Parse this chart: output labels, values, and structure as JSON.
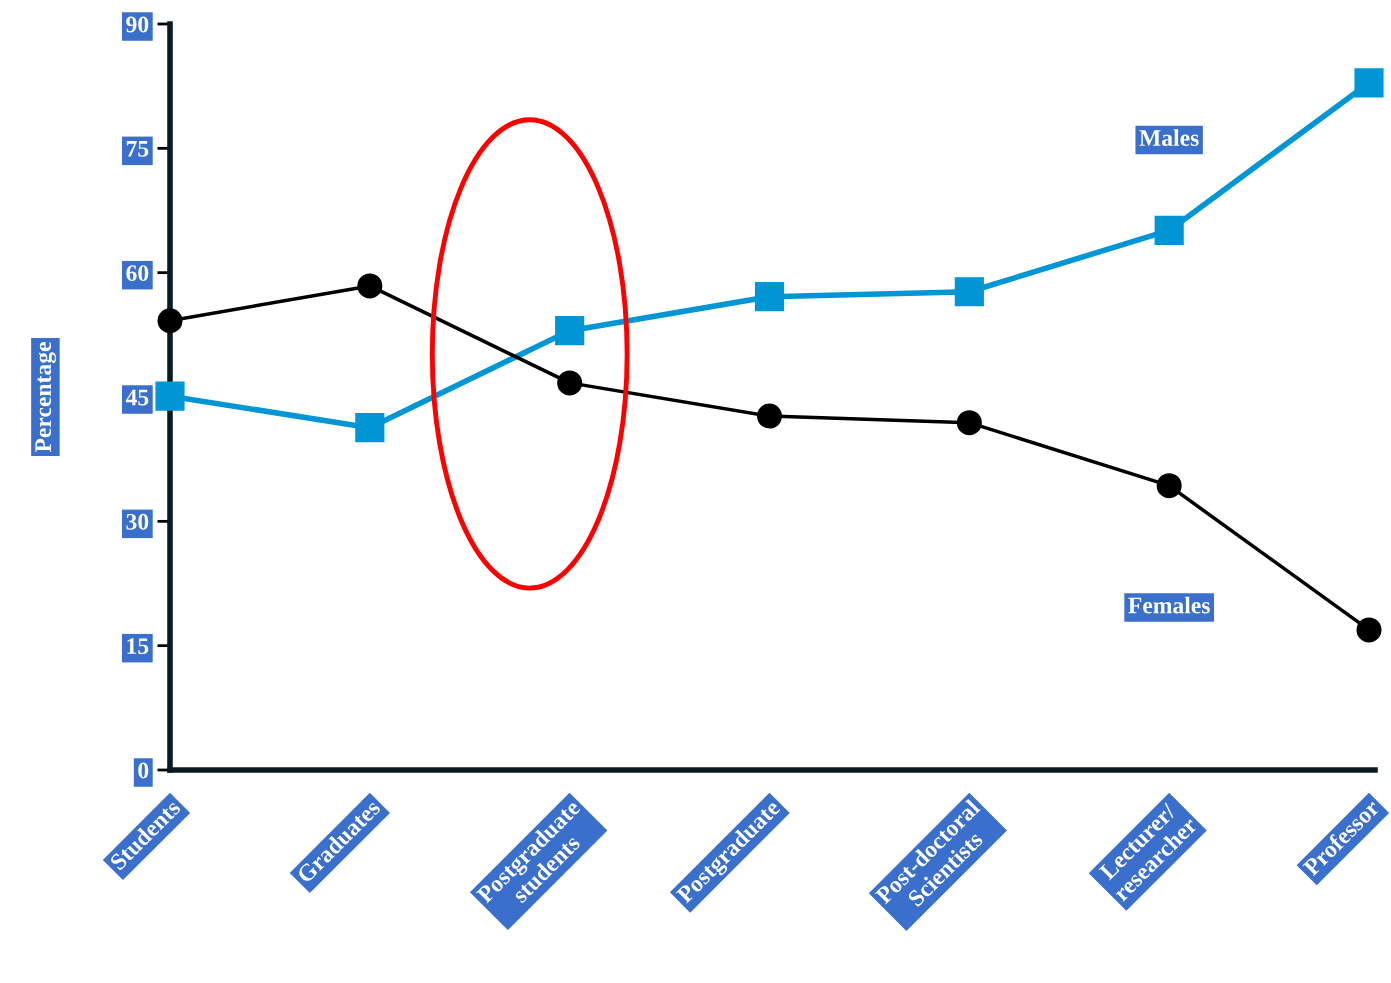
{
  "chart_data": {
    "type": "line",
    "ylabel": "Percentage",
    "categories": [
      "Students",
      "Graduates",
      "Postgraduate\nstudents",
      "Postgraduate",
      "Post-doctoral\nScientists",
      "Lecturer/\nresearcher",
      "Professor"
    ],
    "series": [
      {
        "name": "Males",
        "color": "#0096d6",
        "marker": "square",
        "values": [
          45.1,
          41.3,
          53.0,
          57.1,
          57.7,
          65.1,
          82.9
        ]
      },
      {
        "name": "Females",
        "color": "#000000",
        "marker": "circle",
        "values": [
          54.2,
          58.4,
          46.7,
          42.7,
          41.9,
          34.3,
          16.9
        ]
      }
    ],
    "ylim": [
      0,
      90
    ],
    "yticks": [
      0,
      15,
      30,
      45,
      60,
      75,
      90
    ],
    "grid": false,
    "legend": false
  }
}
